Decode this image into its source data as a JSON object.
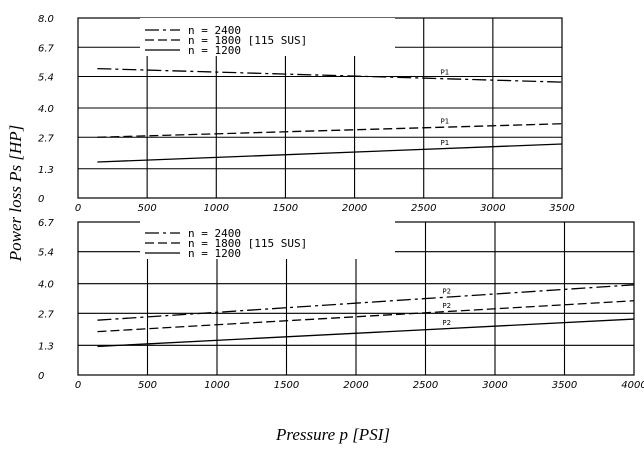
{
  "y_label": "Power loss Ps [HP]",
  "x_label": "Pressure p [PSI]",
  "chart_data": [
    {
      "type": "line",
      "ylim": [
        0,
        8.0
      ],
      "xlim": [
        0,
        3500
      ],
      "y_ticks": [
        "0",
        "1.3",
        "2.7",
        "4.0",
        "5.4",
        "6.7",
        "8.0"
      ],
      "x_ticks": [
        "0",
        "500",
        "1000",
        "1500",
        "2000",
        "2500",
        "3000",
        "3500"
      ],
      "grid": true,
      "legend_position": "top-left",
      "legend": [
        "n = 2400",
        "n = 1800 [115 SUS]",
        "n = 1200"
      ],
      "series": [
        {
          "name": "n = 2400",
          "dash": "dashdot",
          "annotation": "P1",
          "x": [
            140,
            3500
          ],
          "y": [
            5.75,
            5.15
          ]
        },
        {
          "name": "n = 1800 [115 SUS]",
          "dash": "dashed",
          "annotation": "P1",
          "x": [
            140,
            3500
          ],
          "y": [
            2.7,
            3.3
          ]
        },
        {
          "name": "n = 1200",
          "dash": "solid",
          "annotation": "P1",
          "x": [
            140,
            3500
          ],
          "y": [
            1.6,
            2.4
          ]
        }
      ]
    },
    {
      "type": "line",
      "ylim": [
        0,
        6.7
      ],
      "xlim": [
        0,
        4000
      ],
      "y_ticks": [
        "0",
        "1.3",
        "2.7",
        "4.0",
        "5.4",
        "6.7"
      ],
      "x_ticks": [
        "0",
        "500",
        "1000",
        "1500",
        "2000",
        "2500",
        "3000",
        "3500",
        "4000"
      ],
      "grid": true,
      "legend_position": "top-left",
      "legend": [
        "n = 2400",
        "n = 1800 [115 SUS]",
        "n = 1200"
      ],
      "series": [
        {
          "name": "n = 2400",
          "dash": "dashdot",
          "annotation": "P2",
          "x": [
            140,
            4000
          ],
          "y": [
            2.4,
            3.95
          ]
        },
        {
          "name": "n = 1800 [115 SUS]",
          "dash": "dashed",
          "annotation": "P2",
          "x": [
            140,
            4000
          ],
          "y": [
            1.9,
            3.25
          ]
        },
        {
          "name": "n = 1200",
          "dash": "solid",
          "annotation": "P2",
          "x": [
            140,
            4000
          ],
          "y": [
            1.25,
            2.45
          ]
        }
      ]
    }
  ]
}
